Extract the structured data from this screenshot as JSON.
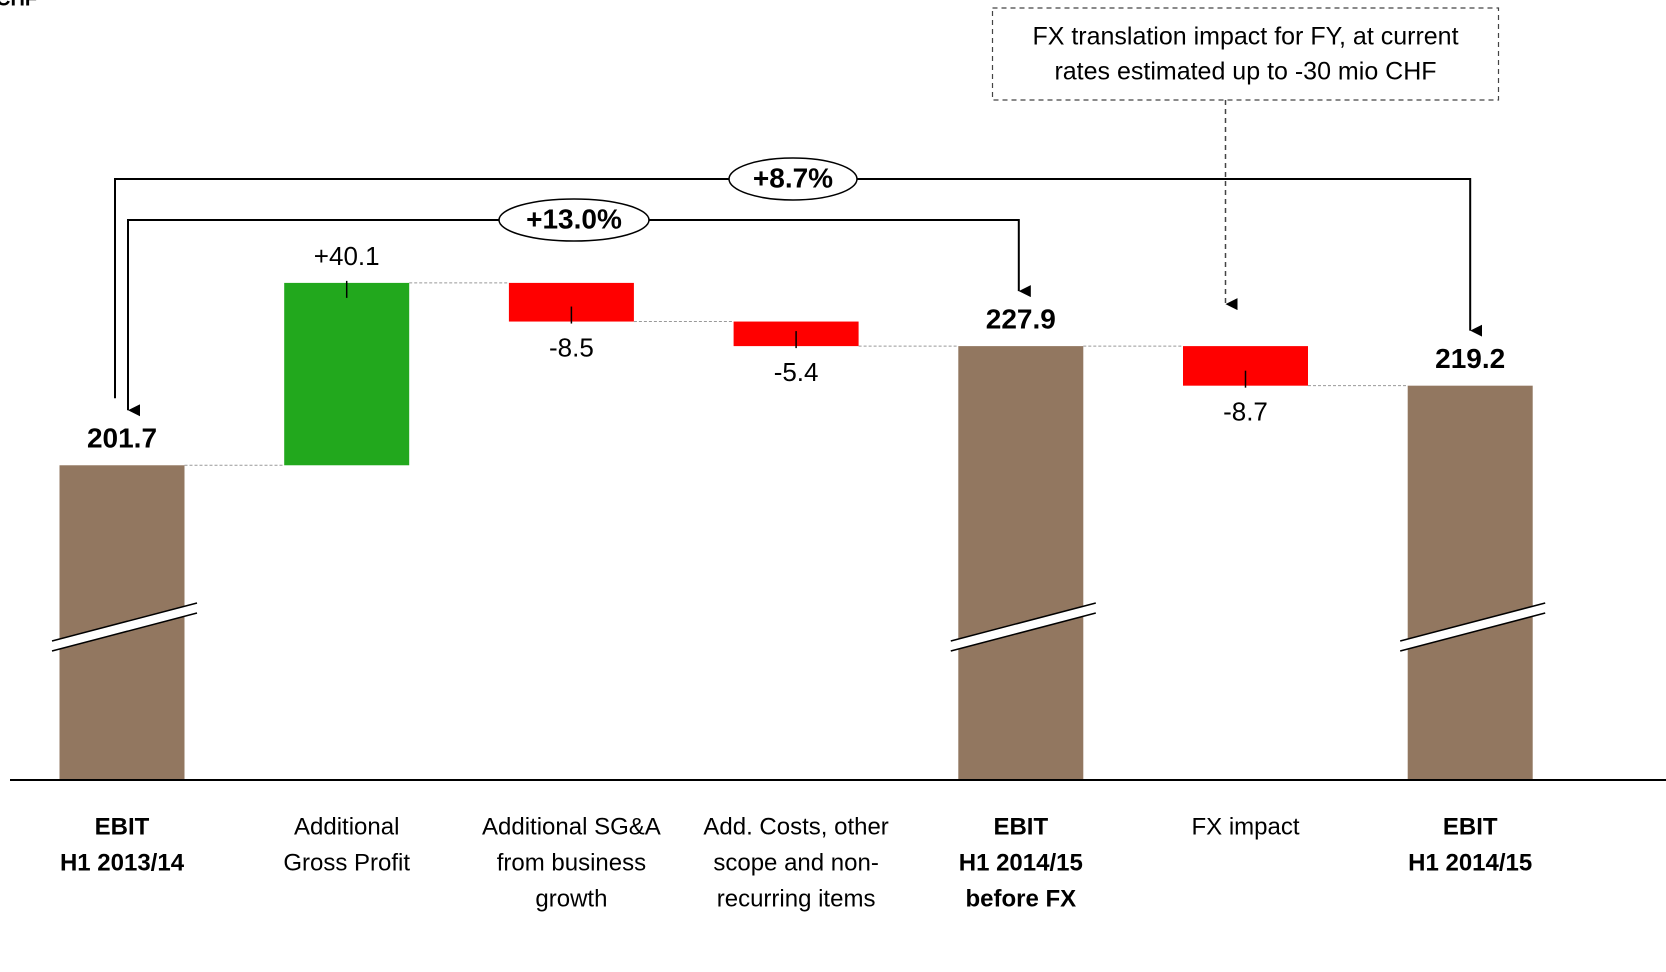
{
  "chart_data": {
    "type": "waterfall",
    "unit": "CHF",
    "categories": [
      [
        "EBIT",
        "H1 2013/14"
      ],
      [
        "Additional",
        "Gross Profit"
      ],
      [
        "Additional SG&A",
        "from business",
        "growth"
      ],
      [
        "Add. Costs, other",
        "scope and non-",
        "recurring items"
      ],
      [
        "EBIT",
        "H1 2014/15",
        "before FX"
      ],
      [
        "FX impact"
      ],
      [
        "EBIT",
        "H1 2014/15"
      ]
    ],
    "kinds": [
      "total",
      "delta",
      "delta",
      "delta",
      "total",
      "delta",
      "total"
    ],
    "values": [
      201.7,
      40.1,
      -8.5,
      -5.4,
      227.9,
      -8.7,
      219.2
    ],
    "value_labels": [
      "201.7",
      "+40.1",
      "-8.5",
      "-5.4",
      "227.9",
      "-8.7",
      "219.2"
    ],
    "colors": {
      "total": "#927760",
      "increase": "#22a81d",
      "decrease": "#ff0000"
    },
    "ylim": [
      132.5,
      304
    ],
    "axis_break": true,
    "brackets": [
      {
        "from": 0,
        "to": 6,
        "label": "+8.7%"
      },
      {
        "from": 0,
        "to": 4,
        "label": "+13.0%"
      }
    ],
    "callout": {
      "target": 5,
      "lines": [
        "FX translation impact for FY, at current",
        "rates estimated up to -30 mio CHF"
      ]
    }
  }
}
